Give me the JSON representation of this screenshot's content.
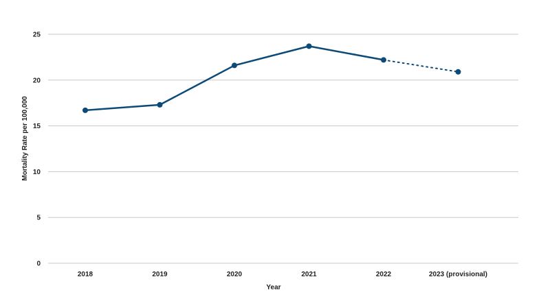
{
  "chart_data": {
    "type": "line",
    "title": "",
    "xlabel": "Year",
    "ylabel": "Mortality Rate per 100,000",
    "categories": [
      "2018",
      "2019",
      "2020",
      "2021",
      "2022",
      "2023 (provisional)"
    ],
    "series": [
      {
        "values": [
          16.7,
          17.3,
          21.6,
          23.7,
          22.2,
          20.9
        ],
        "color": "#0c4a78",
        "dashed_from_index": 4
      }
    ],
    "ylim": [
      0,
      25
    ],
    "yticks": [
      "0",
      "5",
      "10",
      "15",
      "20",
      "25"
    ],
    "grid": true,
    "legend": "none"
  }
}
